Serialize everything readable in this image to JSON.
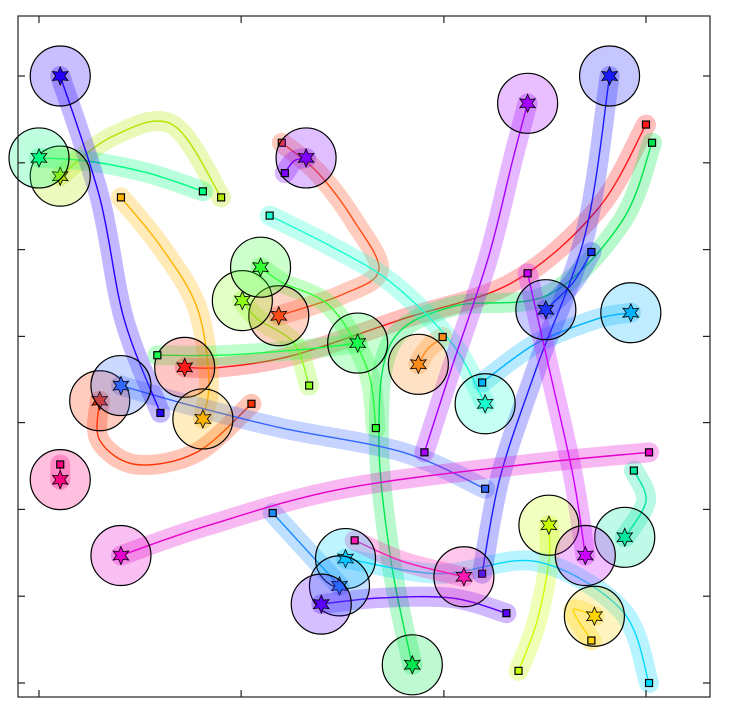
{
  "chart_data": {
    "type": "scatter",
    "title": "",
    "xlabel": "",
    "ylabel": "",
    "xlim": [
      0,
      100
    ],
    "ylim": [
      0,
      100
    ],
    "grid": false,
    "legend": "none",
    "x_ticks": [
      0,
      33.3,
      66.7,
      100
    ],
    "y_ticks": [
      0,
      14.3,
      28.6,
      42.9,
      57.1,
      71.4,
      85.7,
      100
    ],
    "series": [
      {
        "color": "#ff1a1a",
        "goal": [
          24.0,
          52.0
        ],
        "start": [
          100.0,
          92.0
        ],
        "path": [
          [
            100,
            92
          ],
          [
            92,
            78
          ],
          [
            78,
            66
          ],
          [
            60,
            60
          ],
          [
            42,
            54
          ],
          [
            30,
            52
          ],
          [
            24,
            52
          ]
        ]
      },
      {
        "color": "#ff3300",
        "goal": [
          10.0,
          46.5
        ],
        "start": [
          35.0,
          46.0
        ],
        "path": [
          [
            35,
            46
          ],
          [
            26,
            38
          ],
          [
            16,
            36
          ],
          [
            10,
            40
          ],
          [
            10,
            46.5
          ]
        ]
      },
      {
        "color": "#ff4d1a",
        "goal": [
          39.5,
          60.5
        ],
        "start": [
          40.0,
          89.0
        ],
        "path": [
          [
            40,
            89
          ],
          [
            46,
            84
          ],
          [
            52,
            76
          ],
          [
            56,
            68
          ],
          [
            50,
            64
          ],
          [
            39.5,
            60.5
          ]
        ]
      },
      {
        "color": "#ff8c1a",
        "goal": [
          62.5,
          52.5
        ],
        "start": [
          66.5,
          57.0
        ],
        "path": [
          [
            66.5,
            57
          ],
          [
            64,
            55
          ],
          [
            62.5,
            52.5
          ]
        ]
      },
      {
        "color": "#ffb300",
        "goal": [
          27.0,
          43.5
        ],
        "start": [
          13.5,
          80.0
        ],
        "path": [
          [
            13.5,
            80
          ],
          [
            20,
            72
          ],
          [
            26,
            62
          ],
          [
            28,
            50
          ],
          [
            27,
            43.5
          ]
        ]
      },
      {
        "color": "#ffd400",
        "goal": [
          91.5,
          11.0
        ],
        "start": [
          91.0,
          7.0
        ],
        "path": [
          [
            91,
            7
          ],
          [
            88,
            12
          ],
          [
            91.5,
            11
          ]
        ]
      },
      {
        "color": "#c8ff00",
        "goal": [
          84.0,
          26.0
        ],
        "start": [
          79.0,
          2.0
        ],
        "path": [
          [
            79,
            2
          ],
          [
            82,
            10
          ],
          [
            84,
            20
          ],
          [
            84,
            26
          ]
        ]
      },
      {
        "color": "#b3e600",
        "goal": [
          3.5,
          83.5
        ],
        "start": [
          30.0,
          80.0
        ],
        "path": [
          [
            30,
            80
          ],
          [
            22,
            92
          ],
          [
            12,
            90
          ],
          [
            3.5,
            83.5
          ]
        ]
      },
      {
        "color": "#8cff1a",
        "goal": [
          33.5,
          63.0
        ],
        "start": [
          44.5,
          49.0
        ],
        "path": [
          [
            44.5,
            49
          ],
          [
            42,
            56
          ],
          [
            36,
            60
          ],
          [
            33.5,
            63
          ]
        ]
      },
      {
        "color": "#33ff33",
        "goal": [
          36.5,
          68.5
        ],
        "start": [
          55.5,
          42.0
        ],
        "path": [
          [
            55.5,
            42
          ],
          [
            54,
            52
          ],
          [
            48,
            62
          ],
          [
            40,
            66
          ],
          [
            36.5,
            68.5
          ]
        ]
      },
      {
        "color": "#1aff4d",
        "goal": [
          52.5,
          56.0
        ],
        "start": [
          19.5,
          54.0
        ],
        "path": [
          [
            19.5,
            54
          ],
          [
            30,
            54
          ],
          [
            44,
            55
          ],
          [
            52.5,
            56
          ]
        ]
      },
      {
        "color": "#00e64d",
        "goal": [
          61.5,
          3.0
        ],
        "start": [
          101.0,
          89.0
        ],
        "path": [
          [
            101,
            89
          ],
          [
            96,
            76
          ],
          [
            84,
            64
          ],
          [
            68,
            62
          ],
          [
            58,
            56
          ],
          [
            56,
            40
          ],
          [
            58,
            20
          ],
          [
            61.5,
            3
          ]
        ]
      },
      {
        "color": "#00ff80",
        "goal": [
          0.0,
          86.5
        ],
        "start": [
          27.0,
          81.0
        ],
        "path": [
          [
            27,
            81
          ],
          [
            18,
            84
          ],
          [
            8,
            86
          ],
          [
            0,
            86.5
          ]
        ]
      },
      {
        "color": "#00e6a0",
        "goal": [
          96.5,
          24.0
        ],
        "start": [
          98.0,
          35.0
        ],
        "path": [
          [
            98,
            35
          ],
          [
            100,
            30
          ],
          [
            96.5,
            24
          ]
        ]
      },
      {
        "color": "#1affd1",
        "goal": [
          73.5,
          46.0
        ],
        "start": [
          38.0,
          77.0
        ],
        "path": [
          [
            38,
            77
          ],
          [
            48,
            72
          ],
          [
            58,
            66
          ],
          [
            68,
            56
          ],
          [
            73.5,
            46
          ]
        ]
      },
      {
        "color": "#00d9ff",
        "goal": [
          50.5,
          20.5
        ],
        "start": [
          100.5,
          0.0
        ],
        "path": [
          [
            100.5,
            0
          ],
          [
            96,
            12
          ],
          [
            82,
            20
          ],
          [
            66,
            18
          ],
          [
            50.5,
            20.5
          ]
        ]
      },
      {
        "color": "#00b3ff",
        "goal": [
          97.5,
          61.0
        ],
        "start": [
          73.0,
          49.5
        ],
        "path": [
          [
            73,
            49.5
          ],
          [
            82,
            56
          ],
          [
            92,
            60
          ],
          [
            97.5,
            61
          ]
        ]
      },
      {
        "color": "#1a8cff",
        "goal": [
          49.5,
          16.0
        ],
        "start": [
          38.5,
          28.0
        ],
        "path": [
          [
            38.5,
            28
          ],
          [
            44,
            22
          ],
          [
            49.5,
            16
          ]
        ]
      },
      {
        "color": "#3366ff",
        "goal": [
          13.5,
          49.0
        ],
        "start": [
          73.5,
          32.0
        ],
        "path": [
          [
            73.5,
            32
          ],
          [
            60,
            38
          ],
          [
            40,
            42
          ],
          [
            24,
            46
          ],
          [
            13.5,
            49
          ]
        ]
      },
      {
        "color": "#1a33ff",
        "goal": [
          83.5,
          61.5
        ],
        "start": [
          91.0,
          71.0
        ],
        "path": [
          [
            91,
            71
          ],
          [
            88,
            66
          ],
          [
            83.5,
            61.5
          ]
        ]
      },
      {
        "color": "#1a1aff",
        "goal": [
          94.0,
          100.0
        ],
        "start": [
          73.0,
          18.0
        ],
        "path": [
          [
            73,
            18
          ],
          [
            76,
            34
          ],
          [
            82,
            52
          ],
          [
            90,
            74
          ],
          [
            94,
            100
          ]
        ]
      },
      {
        "color": "#2600ff",
        "goal": [
          3.5,
          100.0
        ],
        "start": [
          20.0,
          44.5
        ],
        "path": [
          [
            20,
            44.5
          ],
          [
            14,
            60
          ],
          [
            10,
            80
          ],
          [
            3.5,
            100
          ]
        ]
      },
      {
        "color": "#5900ff",
        "goal": [
          46.5,
          13.0
        ],
        "start": [
          77.0,
          11.5
        ],
        "path": [
          [
            77,
            11.5
          ],
          [
            68,
            14
          ],
          [
            56,
            14
          ],
          [
            46.5,
            13
          ]
        ]
      },
      {
        "color": "#8000ff",
        "goal": [
          44.0,
          86.5
        ],
        "start": [
          40.5,
          84.0
        ],
        "path": [
          [
            40.5,
            84
          ],
          [
            42,
            86
          ],
          [
            44,
            86.5
          ]
        ]
      },
      {
        "color": "#a600ff",
        "goal": [
          80.5,
          95.5
        ],
        "start": [
          63.5,
          38.0
        ],
        "path": [
          [
            63.5,
            38
          ],
          [
            68,
            52
          ],
          [
            74,
            70
          ],
          [
            78,
            86
          ],
          [
            80.5,
            95.5
          ]
        ]
      },
      {
        "color": "#cc00ff",
        "goal": [
          90.0,
          21.0
        ],
        "start": [
          80.5,
          67.5
        ],
        "path": [
          [
            80.5,
            67.5
          ],
          [
            84,
            52
          ],
          [
            88,
            34
          ],
          [
            90,
            21
          ]
        ]
      },
      {
        "color": "#e600cc",
        "goal": [
          13.5,
          21.0
        ],
        "start": [
          100.5,
          38.0
        ],
        "path": [
          [
            100.5,
            38
          ],
          [
            80,
            36
          ],
          [
            50,
            32
          ],
          [
            28,
            26
          ],
          [
            13.5,
            21
          ]
        ]
      },
      {
        "color": "#ff1ab3",
        "goal": [
          70.0,
          17.5
        ],
        "start": [
          52.0,
          23.5
        ],
        "path": [
          [
            52,
            23.5
          ],
          [
            60,
            20
          ],
          [
            70,
            17.5
          ]
        ]
      },
      {
        "color": "#ff0080",
        "goal": [
          3.5,
          33.5
        ],
        "start": [
          3.5,
          36.0
        ],
        "path": [
          [
            3.5,
            36
          ],
          [
            3.5,
            33.5
          ]
        ]
      }
    ]
  }
}
